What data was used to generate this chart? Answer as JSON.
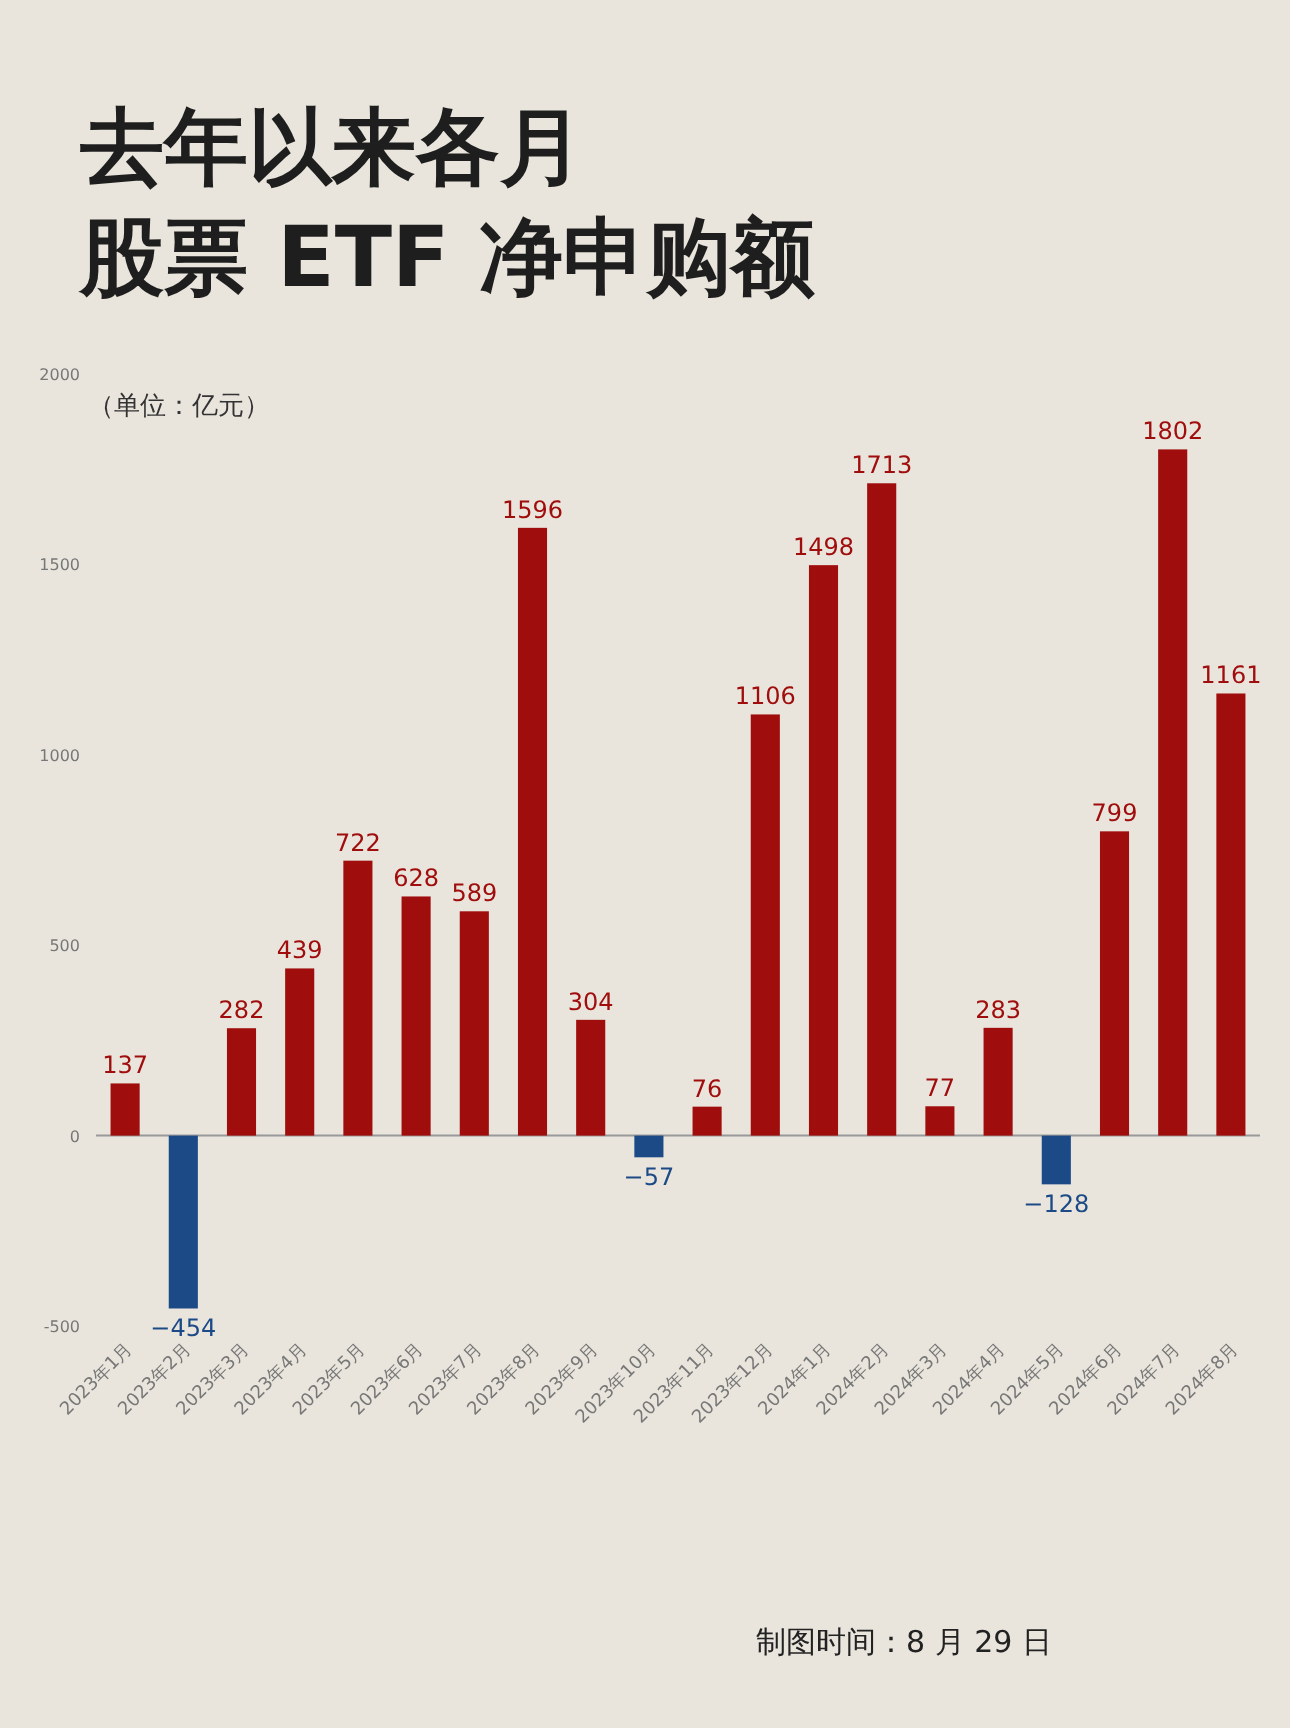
{
  "chart_data": {
    "type": "bar",
    "title": "去年以来各月股票 ETF 净申购额",
    "subtitle": "（单位：亿元）",
    "categories": [
      "2023年1月",
      "2023年2月",
      "2023年3月",
      "2023年4月",
      "2023年5月",
      "2023年6月",
      "2023年7月",
      "2023年8月",
      "2023年9月",
      "2023年10月",
      "2023年11月",
      "2023年12月",
      "2024年1月",
      "2024年2月",
      "2024年3月",
      "2024年4月",
      "2024年5月",
      "2024年6月",
      "2024年7月",
      "2024年8月"
    ],
    "values": [
      137,
      -454,
      282,
      439,
      722,
      628,
      589,
      1596,
      304,
      -57,
      76,
      1106,
      1498,
      1713,
      77,
      283,
      -128,
      799,
      1802,
      1161
    ],
    "colors": [
      "#a00d0d",
      "#1c4a86",
      "#a00d0d",
      "#a00d0d",
      "#a00d0d",
      "#a00d0d",
      "#a00d0d",
      "#a00d0d",
      "#a00d0d",
      "#1c4a86",
      "#a00d0d",
      "#a00d0d",
      "#a00d0d",
      "#a00d0d",
      "#a00d0d",
      "#a00d0d",
      "#1c4a86",
      "#a00d0d",
      "#a00d0d",
      "#a00d0d"
    ],
    "ylim": [
      -500,
      2000
    ],
    "yticks": [
      -500,
      0,
      500,
      1000,
      1500,
      2000
    ],
    "data_labels": true,
    "annotations": [
      "制图时间：8 月 29 日"
    ]
  }
}
